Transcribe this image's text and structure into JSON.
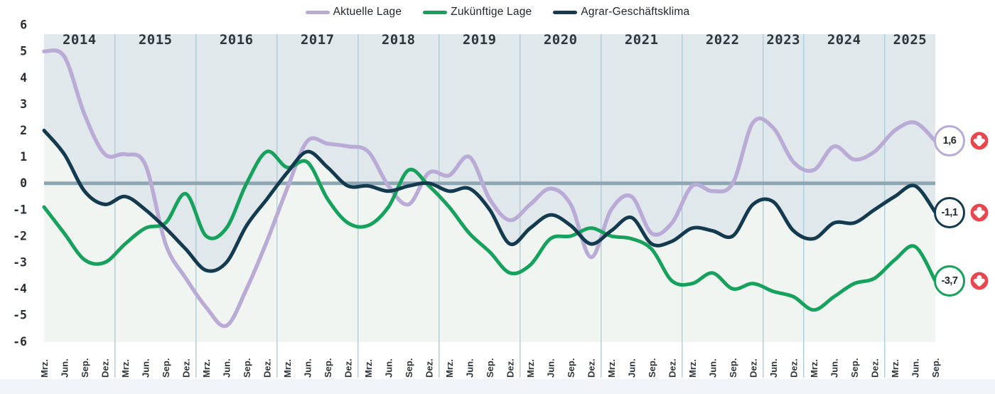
{
  "chart_data": {
    "type": "line",
    "ylim": [
      -6,
      6
    ],
    "y_ticks": [
      6,
      5,
      4,
      3,
      2,
      1,
      0,
      -1,
      -2,
      -3,
      -4,
      -5,
      -6
    ],
    "x_months": [
      "Mrz.",
      "Jun.",
      "Sep.",
      "Dez.",
      "Mrz.",
      "Jun.",
      "Sep.",
      "Dez.",
      "Mrz.",
      "Jun.",
      "Sep.",
      "Dez.",
      "Mrz.",
      "Jun.",
      "Sep.",
      "Dez.",
      "Mrz.",
      "Jun.",
      "Sep.",
      "Dez.",
      "Mrz.",
      "Jun.",
      "Sep.",
      "Dez.",
      "Mrz.",
      "Jun.",
      "Sep.",
      "Dez.",
      "Mrz.",
      "Jun.",
      "Sep.",
      "Dez.",
      "Mrz.",
      "Jun.",
      "Sep.",
      "Dez.",
      "Jun.",
      "Dez.",
      "Mrz.",
      "Jun.",
      "Sep.",
      "Dez.",
      "Mrz.",
      "Jun.",
      "Sep."
    ],
    "years": [
      {
        "label": "2014",
        "ticks": 4
      },
      {
        "label": "2015",
        "ticks": 4
      },
      {
        "label": "2016",
        "ticks": 4
      },
      {
        "label": "2017",
        "ticks": 4
      },
      {
        "label": "2018",
        "ticks": 4
      },
      {
        "label": "2019",
        "ticks": 4
      },
      {
        "label": "2020",
        "ticks": 4
      },
      {
        "label": "2021",
        "ticks": 4
      },
      {
        "label": "2022",
        "ticks": 4
      },
      {
        "label": "2023",
        "ticks": 2
      },
      {
        "label": "2024",
        "ticks": 4
      },
      {
        "label": "2025",
        "ticks": 3
      }
    ],
    "series": [
      {
        "name": "Aktuelle Lage",
        "color": "#b9abd6",
        "end_label": "1,6",
        "end_value": 1.6,
        "trend": "down",
        "values": [
          5.0,
          4.8,
          2.6,
          1.1,
          1.1,
          0.7,
          -2.3,
          -3.6,
          -4.7,
          -5.4,
          -4.0,
          -2.2,
          -0.2,
          1.6,
          1.5,
          1.4,
          1.2,
          -0.1,
          -0.8,
          0.4,
          0.3,
          1.0,
          -0.6,
          -1.4,
          -0.8,
          -0.2,
          -0.8,
          -2.8,
          -1.0,
          -0.5,
          -1.9,
          -1.5,
          -0.1,
          -0.3,
          0.0,
          2.3,
          2.1,
          0.8,
          0.5,
          1.4,
          0.9,
          1.2,
          2.0,
          2.3,
          1.6
        ]
      },
      {
        "name": "Zukünftige Lage",
        "color": "#16a15c",
        "end_label": "-3,7",
        "end_value": -3.7,
        "trend": "down",
        "values": [
          -0.9,
          -1.9,
          -2.9,
          -3.0,
          -2.3,
          -1.7,
          -1.5,
          -0.4,
          -2.0,
          -1.7,
          0.0,
          1.2,
          0.6,
          0.8,
          -0.6,
          -1.5,
          -1.6,
          -0.9,
          0.5,
          -0.1,
          -0.9,
          -1.9,
          -2.6,
          -3.4,
          -3.1,
          -2.1,
          -2.0,
          -1.7,
          -2.0,
          -2.1,
          -2.5,
          -3.7,
          -3.8,
          -3.4,
          -4.0,
          -3.8,
          -4.1,
          -4.3,
          -4.8,
          -4.3,
          -3.8,
          -3.6,
          -2.9,
          -2.4,
          -3.7
        ]
      },
      {
        "name": "Agrar-Geschäftsklima",
        "color": "#133a4f",
        "end_label": "-1,1",
        "end_value": -1.1,
        "trend": "down",
        "area_split": true,
        "values": [
          2.0,
          1.1,
          -0.3,
          -0.8,
          -0.5,
          -1.0,
          -1.7,
          -2.5,
          -3.3,
          -3.0,
          -1.6,
          -0.6,
          0.4,
          1.2,
          0.6,
          -0.1,
          -0.1,
          -0.3,
          -0.1,
          0.0,
          -0.3,
          -0.2,
          -1.0,
          -2.3,
          -1.7,
          -1.2,
          -1.6,
          -2.3,
          -1.8,
          -1.3,
          -2.3,
          -2.2,
          -1.7,
          -1.8,
          -2.0,
          -0.8,
          -0.7,
          -1.8,
          -2.1,
          -1.5,
          -1.5,
          -1.0,
          -0.5,
          -0.1,
          -1.1
        ]
      }
    ],
    "colors": {
      "area_above": "#e0e8ec",
      "area_below": "#f0f5f1",
      "zero_line": "#8ca7b3",
      "year_separator": "#a9cedb",
      "axis_text": "#272e34",
      "trend_icon": "#e8474e"
    },
    "legend_position": "top-center",
    "grid": "year-separators-only"
  }
}
